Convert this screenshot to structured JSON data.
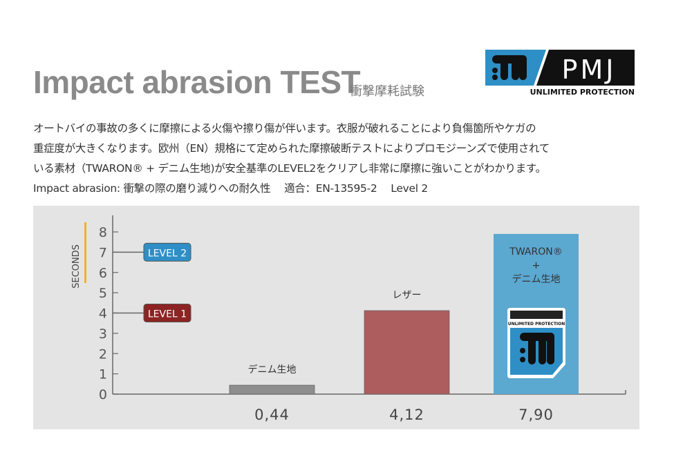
{
  "header": {
    "title": "Impact abrasion TEST",
    "subtitle": "衝撃摩耗試験",
    "logo": {
      "brand": "PMJ",
      "tagline": "UNLIMITED PROTECTION"
    }
  },
  "description": {
    "lines": [
      "オートバイの事故の多くに摩擦による火傷や擦り傷が伴います。衣服が破れることにより負傷箇所やケガの",
      "重症度が大きくなります。欧州（EN）規格にて定められた摩擦破断テストによりプロモジーンズで使用されて",
      "いる素材（TWARON® +  デニム生地)が安全基準のLEVEL2をクリアし非常に摩擦に強いことがわかります。",
      "Impact abrasion: 衝撃の際の磨り減りへの耐久性　 適合：EN-13595-2　 Level 2"
    ]
  },
  "chart_data": {
    "type": "bar",
    "ylabel": "SECONDS",
    "ylim": [
      0,
      8
    ],
    "yticks": [
      "0",
      "1",
      "2",
      "3",
      "4",
      "5",
      "6",
      "7",
      "8"
    ],
    "categories": [
      "デニム生地",
      "レザー",
      "TWARON® + デニム生地"
    ],
    "category_label_lines": [
      [
        "デニム生地"
      ],
      [
        "レザー"
      ],
      [
        "TWARON®",
        "+",
        "デニム生地"
      ]
    ],
    "values": [
      0.44,
      4.12,
      7.9
    ],
    "value_labels": [
      "0,44",
      "4,12",
      "7,90"
    ],
    "bar_colors": [
      "#8e8e8e",
      "#ad5d5e",
      "#5ba8d0"
    ],
    "reference_lines": [
      {
        "label": "LEVEL 2",
        "value": 7,
        "color": "#2e8fc6"
      },
      {
        "label": "LEVEL 1",
        "value": 4,
        "color": "#8b2423"
      }
    ],
    "bar_badge": {
      "tagline": "UNLIMITED PROTECTION"
    },
    "ylabel_accent_color": "#f2b12a",
    "grid": false
  }
}
